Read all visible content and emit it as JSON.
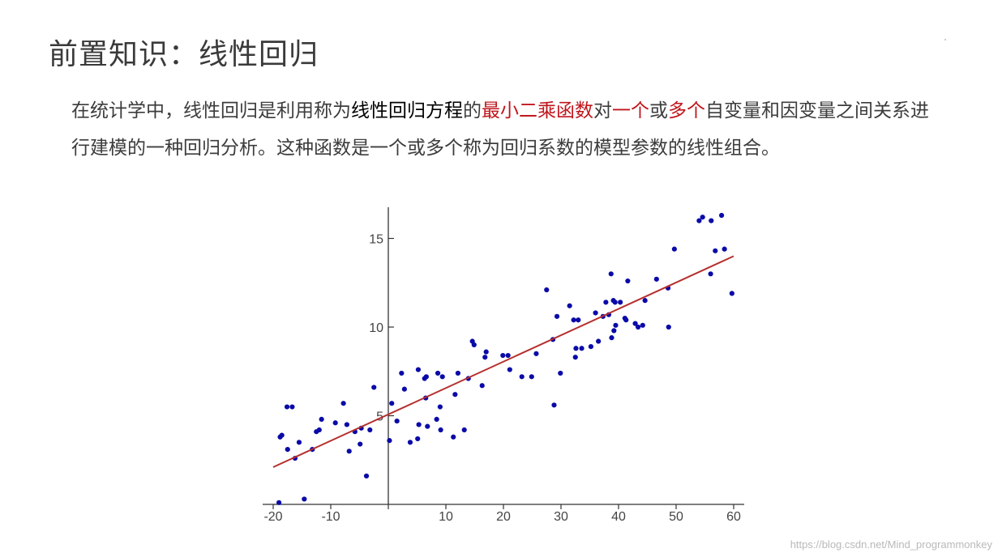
{
  "title": "前置知识：线性回归",
  "paragraph": {
    "p1": "在统计学中，线性回归是利用称为",
    "p2": "线性回归方程",
    "p3": "的",
    "p4": "最小二乘函数",
    "p5": "对",
    "p6": "一个",
    "p7": "或",
    "p8": "多个",
    "p9": "自变量和因变量之间关系进行建模的一种回归分析。这种函数是一个或多个称为回归系数的模型参数的线性组合。"
  },
  "watermark": "https://blog.csdn.net/Mind_programmonkey",
  "colors": {
    "point": "#0a0aa8",
    "line": "#b5302e",
    "highlight_red": "#c0161c",
    "highlight_dark": "#000000"
  },
  "chart_data": {
    "type": "scatter",
    "xlim": [
      -21,
      61
    ],
    "ylim": [
      0,
      16.8
    ],
    "x_ticks": [
      -20,
      -10,
      0,
      10,
      20,
      30,
      40,
      50,
      60
    ],
    "x_tick_labels": [
      "-20",
      "-10",
      "",
      "10",
      "20",
      "30",
      "40",
      "50",
      "60"
    ],
    "y_ticks": [
      5,
      10,
      15
    ],
    "y_tick_labels": [
      "5",
      "10",
      "15"
    ],
    "regression_line": {
      "x": [
        -20,
        60
      ],
      "y": [
        2.1,
        14.0
      ]
    },
    "points": [
      [
        -19,
        0.1
      ],
      [
        -18.8,
        3.8
      ],
      [
        -18.5,
        3.9
      ],
      [
        -17.6,
        5.5
      ],
      [
        -17.5,
        3.1
      ],
      [
        -16.7,
        5.5
      ],
      [
        -16.2,
        2.6
      ],
      [
        -15.5,
        3.5
      ],
      [
        -14.6,
        0.3
      ],
      [
        -13.2,
        3.1
      ],
      [
        -12.5,
        4.1
      ],
      [
        -12,
        4.2
      ],
      [
        -11.6,
        4.8
      ],
      [
        -9.2,
        4.6
      ],
      [
        -7.8,
        5.7
      ],
      [
        -7.2,
        4.5
      ],
      [
        -6.8,
        3.0
      ],
      [
        -5.8,
        4.1
      ],
      [
        -4.9,
        3.4
      ],
      [
        -4.7,
        4.3
      ],
      [
        -3.8,
        1.6
      ],
      [
        -3.2,
        4.2
      ],
      [
        -2.5,
        6.6
      ],
      [
        0.2,
        3.6
      ],
      [
        0.6,
        5.7
      ],
      [
        1.5,
        4.7
      ],
      [
        2.3,
        7.4
      ],
      [
        2.8,
        6.5
      ],
      [
        3.8,
        3.5
      ],
      [
        5.1,
        3.7
      ],
      [
        5.2,
        7.6
      ],
      [
        5.3,
        4.5
      ],
      [
        6.3,
        7.1
      ],
      [
        6.5,
        6.0
      ],
      [
        6.6,
        7.2
      ],
      [
        6.8,
        4.4
      ],
      [
        8.4,
        4.8
      ],
      [
        8.6,
        7.4
      ],
      [
        9.0,
        5.5
      ],
      [
        9.1,
        4.2
      ],
      [
        9.4,
        7.2
      ],
      [
        11.3,
        3.8
      ],
      [
        11.6,
        6.2
      ],
      [
        12.1,
        7.4
      ],
      [
        13.2,
        4.2
      ],
      [
        13.9,
        7.1
      ],
      [
        14.6,
        9.2
      ],
      [
        14.9,
        9.0
      ],
      [
        16.3,
        6.7
      ],
      [
        16.8,
        8.3
      ],
      [
        17.0,
        8.6
      ],
      [
        19.9,
        8.4
      ],
      [
        20.8,
        8.4
      ],
      [
        21.1,
        7.6
      ],
      [
        23.2,
        7.2
      ],
      [
        24.9,
        7.2
      ],
      [
        25.7,
        8.5
      ],
      [
        27.5,
        12.1
      ],
      [
        28.6,
        9.3
      ],
      [
        28.8,
        5.6
      ],
      [
        29.3,
        10.6
      ],
      [
        29.9,
        7.4
      ],
      [
        31.5,
        11.2
      ],
      [
        32.2,
        10.4
      ],
      [
        32.5,
        8.3
      ],
      [
        32.6,
        8.8
      ],
      [
        33.0,
        10.4
      ],
      [
        33.6,
        8.8
      ],
      [
        35.2,
        8.9
      ],
      [
        36.0,
        10.8
      ],
      [
        36.5,
        9.2
      ],
      [
        37.3,
        10.6
      ],
      [
        37.8,
        11.4
      ],
      [
        38.3,
        10.7
      ],
      [
        38.7,
        13.0
      ],
      [
        38.8,
        9.4
      ],
      [
        39.1,
        11.5
      ],
      [
        39.2,
        9.8
      ],
      [
        39.4,
        11.4
      ],
      [
        39.5,
        10.1
      ],
      [
        40.3,
        11.4
      ],
      [
        41.1,
        10.5
      ],
      [
        41.3,
        10.4
      ],
      [
        41.6,
        12.6
      ],
      [
        42.9,
        10.2
      ],
      [
        43.4,
        10.0
      ],
      [
        44.2,
        10.1
      ],
      [
        44.6,
        11.5
      ],
      [
        46.6,
        12.7
      ],
      [
        48.6,
        12.2
      ],
      [
        48.7,
        10.0
      ],
      [
        49.7,
        14.4
      ],
      [
        54.0,
        16.0
      ],
      [
        54.6,
        16.2
      ],
      [
        56.0,
        13.0
      ],
      [
        56.1,
        16.0
      ],
      [
        56.8,
        14.3
      ],
      [
        57.9,
        16.3
      ],
      [
        58.4,
        14.4
      ],
      [
        59.7,
        11.9
      ]
    ]
  }
}
